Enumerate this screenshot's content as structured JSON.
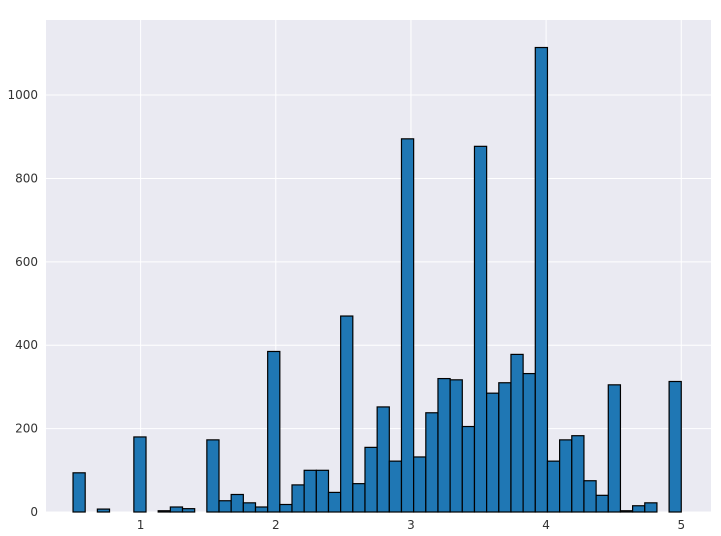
{
  "chart_data": {
    "type": "bar",
    "subtype": "histogram",
    "title": "",
    "xlabel": "",
    "ylabel": "",
    "xlim": [
      0.3,
      5.22
    ],
    "ylim": [
      0,
      1180
    ],
    "grid": true,
    "bin_start": 0.5,
    "bin_width": 0.09,
    "counts": [
      94,
      0,
      7,
      0,
      0,
      180,
      0,
      3,
      12,
      8,
      0,
      173,
      27,
      42,
      22,
      12,
      385,
      18,
      65,
      100,
      100,
      47,
      470,
      68,
      155,
      252,
      122,
      895,
      132,
      238,
      320,
      317,
      205,
      877,
      285,
      310,
      378,
      332,
      1114,
      122,
      173,
      183,
      75,
      40,
      305,
      3,
      15,
      22,
      0,
      313
    ],
    "x_ticks": [
      1,
      2,
      3,
      4,
      5
    ],
    "x_tick_labels": [
      "1",
      "2",
      "3",
      "4",
      "5"
    ],
    "y_ticks": [
      0,
      200,
      400,
      600,
      800,
      1000
    ],
    "y_tick_labels": [
      "0",
      "200",
      "400",
      "600",
      "800",
      "1000"
    ],
    "colors": {
      "bar": "#1f77b4",
      "edge": "#000000",
      "background": "#eaeaf2",
      "grid": "#ffffff"
    }
  }
}
